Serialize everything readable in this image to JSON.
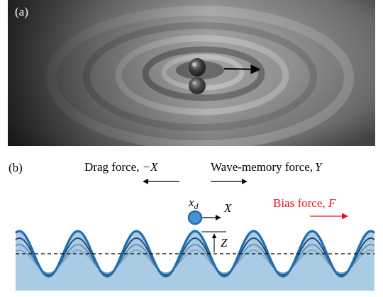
{
  "figure": {
    "panel_a": {
      "label": "(a)"
    },
    "panel_b": {
      "label": "(b)",
      "drag_force_label": "Drag force, ",
      "drag_force_symbol": "−X",
      "wave_memory_label": "Wave-memory force,",
      "wave_memory_symbol": "Y",
      "bias_force_label": "Bias force, ",
      "bias_force_symbol": "F",
      "position_label_main": "x",
      "position_label_sub": "d",
      "velocity_label": "X",
      "height_label": "Z"
    },
    "colors": {
      "bias": "#e8141c",
      "wave_fill": "#a9cbe4",
      "wave_main": "#1b6fb5",
      "wave_secondary": "#1e3c63",
      "wave_faded": "#5d7fa5",
      "droplet": "#4a90d2"
    }
  }
}
